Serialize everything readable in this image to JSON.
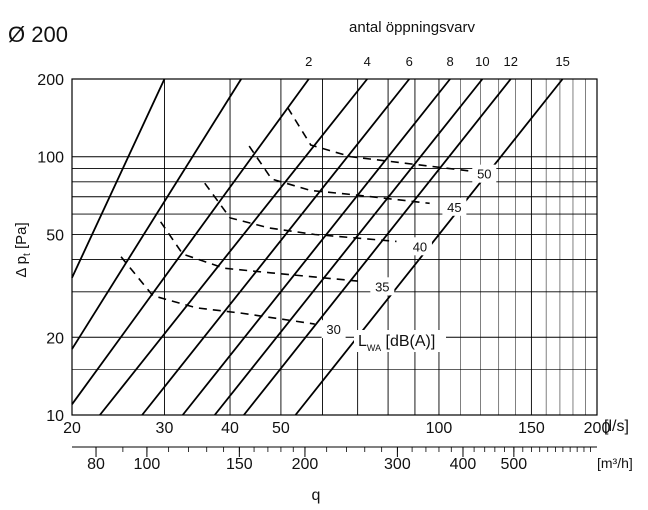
{
  "chart_data": {
    "type": "line",
    "title": "Ø 200",
    "top_axis_label": "antal öppningsvarv",
    "xlabel": "q",
    "ylabel": "Δ p",
    "ylabel_sub": "t",
    "ylabel_unit": " [Pa]",
    "x_scale": "log",
    "y_scale": "log",
    "xlim": [
      20,
      200
    ],
    "ylim": [
      10,
      200
    ],
    "x_unit_ls": "[l/s]",
    "x_unit_m3h": "[m³/h]",
    "x_ticks": [
      20,
      30,
      40,
      50,
      100,
      150,
      200
    ],
    "x_ticks_m3h": [
      80,
      100,
      150,
      200,
      300,
      400,
      500
    ],
    "y_ticks": [
      10,
      20,
      50,
      100,
      200
    ],
    "grid": true,
    "opening_lines": [
      {
        "name": "2",
        "x": [
          20,
          56.5
        ],
        "y": [
          11,
          200
        ]
      },
      {
        "name": "4",
        "x": [
          22.6,
          73
        ],
        "y": [
          10,
          200
        ]
      },
      {
        "name": "6",
        "x": [
          27.2,
          87.8
        ],
        "y": [
          10,
          200
        ]
      },
      {
        "name": "8",
        "x": [
          32.5,
          105
        ],
        "y": [
          10,
          200
        ]
      },
      {
        "name": "10",
        "x": [
          37.4,
          121
        ],
        "y": [
          10,
          200
        ]
      },
      {
        "name": "12",
        "x": [
          42.5,
          137
        ],
        "y": [
          10,
          200
        ]
      },
      {
        "name": "15",
        "x": [
          53.3,
          172
        ],
        "y": [
          10,
          200
        ]
      },
      {
        "name": "",
        "x": [
          20,
          42
        ],
        "y": [
          18,
          200
        ]
      },
      {
        "name": "",
        "x": [
          20,
          30
        ],
        "y": [
          34,
          200
        ]
      }
    ],
    "sound_label_prefix": "L",
    "sound_label_sub": "WA",
    "sound_label_unit": " [dB(A)]",
    "sound_curves": [
      {
        "name": "30",
        "x": [
          24.8,
          28.5,
          34.5,
          42,
          58
        ],
        "y": [
          41,
          29,
          26,
          24.8,
          22.5
        ]
      },
      {
        "name": "35",
        "x": [
          29.5,
          32.5,
          39,
          48,
          70
        ],
        "y": [
          56,
          42,
          37,
          35.5,
          33
        ]
      },
      {
        "name": "40",
        "x": [
          35.8,
          40,
          47.5,
          58,
          83
        ],
        "y": [
          79,
          58,
          53,
          50,
          47
        ]
      },
      {
        "name": "45",
        "x": [
          43.5,
          48,
          57,
          70,
          96
        ],
        "y": [
          110,
          82,
          74,
          71,
          66
        ]
      },
      {
        "name": "50",
        "x": [
          51.5,
          57,
          68,
          84,
          115
        ],
        "y": [
          155,
          111,
          100,
          95,
          88
        ]
      }
    ],
    "sound_label_values": [
      {
        "name": "30",
        "x": 63,
        "y": 21.5
      },
      {
        "name": "35",
        "x": 78,
        "y": 31.5
      },
      {
        "name": "40",
        "x": 92,
        "y": 45
      },
      {
        "name": "45",
        "x": 107,
        "y": 64
      },
      {
        "name": "50",
        "x": 122,
        "y": 86
      }
    ]
  }
}
